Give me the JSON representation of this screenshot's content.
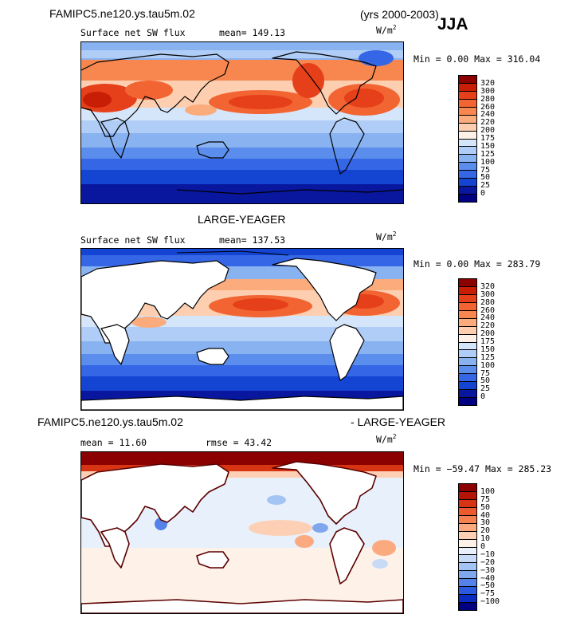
{
  "header": {
    "case_name": "FAMIPC5.ne120.ys.tau5m.02",
    "years": "(yrs 2000-2003)",
    "season": "JJA"
  },
  "panel1": {
    "variable": "Surface net SW flux",
    "mean": "mean= 149.13",
    "units": "W/m",
    "units_exp": "2",
    "minmax": "Min =   0.00 Max = 316.04",
    "levels": [
      "320",
      "300",
      "280",
      "260",
      "240",
      "220",
      "200",
      "175",
      "150",
      "125",
      "100",
      "75",
      "50",
      "25",
      "0"
    ],
    "colors": [
      "#8b0000",
      "#c81e05",
      "#e6401a",
      "#f26533",
      "#f7874f",
      "#fbab7c",
      "#fdcfb0",
      "#fdf0e6",
      "#d6e6fa",
      "#afcdf6",
      "#89b2f1",
      "#5b8eec",
      "#3466e6",
      "#1444d2",
      "#08179e",
      "#000080"
    ]
  },
  "obs_title": "LARGE-YEAGER",
  "panel2": {
    "variable": "Surface net SW flux",
    "mean": "mean= 137.53",
    "units": "W/m",
    "units_exp": "2",
    "minmax": "Min =   0.00 Max = 283.79",
    "levels": [
      "320",
      "300",
      "280",
      "260",
      "240",
      "220",
      "200",
      "175",
      "150",
      "125",
      "100",
      "75",
      "50",
      "25",
      "0"
    ]
  },
  "diff": {
    "title_left": "FAMIPC5.ne120.ys.tau5m.02",
    "title_right": "- LARGE-YEAGER",
    "mean": "mean =   11.60",
    "rmse": "rmse =   43.42",
    "units": "W/m",
    "units_exp": "2",
    "minmax": "Min = −59.47 Max = 285.23",
    "levels": [
      "100",
      "75",
      "50",
      "40",
      "30",
      "20",
      "10",
      "0",
      "−10",
      "−20",
      "−30",
      "−40",
      "−50",
      "−75",
      "−100"
    ],
    "colors": [
      "#8b0000",
      "#b31405",
      "#d63412",
      "#ec5a2e",
      "#f5814f",
      "#fbaa7f",
      "#fdd0b5",
      "#fef1e8",
      "#e8f0fc",
      "#c7dbf7",
      "#a4c4f3",
      "#7fa7ee",
      "#5582e8",
      "#2b5adf",
      "#0b2cc0",
      "#000080"
    ]
  }
}
